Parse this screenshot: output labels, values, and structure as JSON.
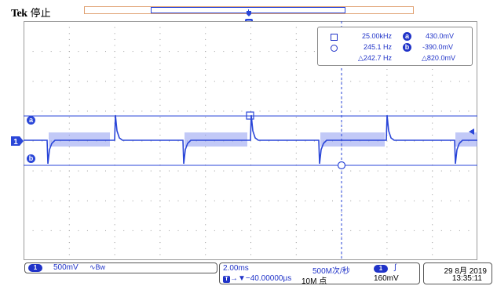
{
  "header": {
    "brand": "Tek",
    "run_status": "停止"
  },
  "cursor_readout": {
    "cursor_a_frequency": "25.00kHz",
    "cursor_a_label": "a",
    "cursor_a_level": "430.0mV",
    "cursor_b_frequency": "245.1 Hz",
    "cursor_b_label": "b",
    "cursor_b_level": "-390.0mV",
    "delta_frequency": "△242.7 Hz",
    "delta_level": "△820.0mV"
  },
  "markers": {
    "channel_1": "1",
    "cursor_a": "a",
    "cursor_b": "b",
    "trigger": "T"
  },
  "channel_panel": {
    "channel": "1",
    "scale": "500mV",
    "coupling_symbol": "∿Bw"
  },
  "horizontal_panel": {
    "time_per_div": "2.00ms",
    "trigger_position": "→▼−40.00000µs",
    "sample_rate": "500M次/秒",
    "record_length": "10M 点",
    "trigger_channel": "1",
    "trigger_slope": "∫",
    "trigger_level": "160mV"
  },
  "datetime_panel": {
    "date": "29 8月 2019",
    "time": "13:35:11"
  },
  "colors": {
    "trace": "#2a46d8",
    "trace_noise": "#8f9cf0",
    "text_blue": "#2033c8",
    "grid_dot": "#9a9a9a",
    "record_bar_border": "#e0a070"
  }
}
